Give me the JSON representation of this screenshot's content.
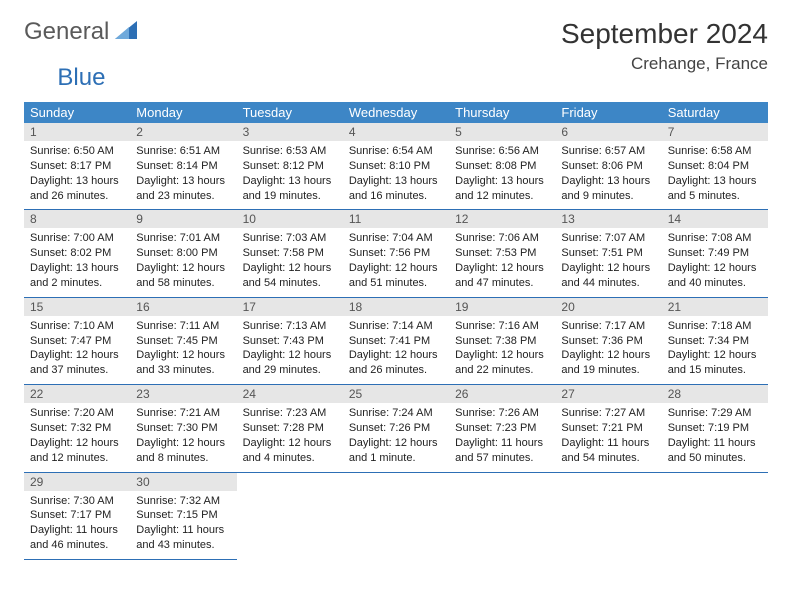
{
  "brand": {
    "part1": "General",
    "part2": "Blue"
  },
  "title": "September 2024",
  "location": "Crehange, France",
  "colors": {
    "header_bg": "#3d86c6",
    "header_text": "#ffffff",
    "daynum_bg": "#e6e6e6",
    "rule": "#2d6fb5",
    "brand_gray": "#5a5a5a",
    "brand_blue": "#2d6fb5"
  },
  "weekdays": [
    "Sunday",
    "Monday",
    "Tuesday",
    "Wednesday",
    "Thursday",
    "Friday",
    "Saturday"
  ],
  "weeks": [
    [
      {
        "n": "1",
        "sunrise": "6:50 AM",
        "sunset": "8:17 PM",
        "dh": "13",
        "dm": "26"
      },
      {
        "n": "2",
        "sunrise": "6:51 AM",
        "sunset": "8:14 PM",
        "dh": "13",
        "dm": "23"
      },
      {
        "n": "3",
        "sunrise": "6:53 AM",
        "sunset": "8:12 PM",
        "dh": "13",
        "dm": "19"
      },
      {
        "n": "4",
        "sunrise": "6:54 AM",
        "sunset": "8:10 PM",
        "dh": "13",
        "dm": "16"
      },
      {
        "n": "5",
        "sunrise": "6:56 AM",
        "sunset": "8:08 PM",
        "dh": "13",
        "dm": "12"
      },
      {
        "n": "6",
        "sunrise": "6:57 AM",
        "sunset": "8:06 PM",
        "dh": "13",
        "dm": "9"
      },
      {
        "n": "7",
        "sunrise": "6:58 AM",
        "sunset": "8:04 PM",
        "dh": "13",
        "dm": "5"
      }
    ],
    [
      {
        "n": "8",
        "sunrise": "7:00 AM",
        "sunset": "8:02 PM",
        "dh": "13",
        "dm": "2"
      },
      {
        "n": "9",
        "sunrise": "7:01 AM",
        "sunset": "8:00 PM",
        "dh": "12",
        "dm": "58"
      },
      {
        "n": "10",
        "sunrise": "7:03 AM",
        "sunset": "7:58 PM",
        "dh": "12",
        "dm": "54"
      },
      {
        "n": "11",
        "sunrise": "7:04 AM",
        "sunset": "7:56 PM",
        "dh": "12",
        "dm": "51"
      },
      {
        "n": "12",
        "sunrise": "7:06 AM",
        "sunset": "7:53 PM",
        "dh": "12",
        "dm": "47"
      },
      {
        "n": "13",
        "sunrise": "7:07 AM",
        "sunset": "7:51 PM",
        "dh": "12",
        "dm": "44"
      },
      {
        "n": "14",
        "sunrise": "7:08 AM",
        "sunset": "7:49 PM",
        "dh": "12",
        "dm": "40"
      }
    ],
    [
      {
        "n": "15",
        "sunrise": "7:10 AM",
        "sunset": "7:47 PM",
        "dh": "12",
        "dm": "37"
      },
      {
        "n": "16",
        "sunrise": "7:11 AM",
        "sunset": "7:45 PM",
        "dh": "12",
        "dm": "33"
      },
      {
        "n": "17",
        "sunrise": "7:13 AM",
        "sunset": "7:43 PM",
        "dh": "12",
        "dm": "29"
      },
      {
        "n": "18",
        "sunrise": "7:14 AM",
        "sunset": "7:41 PM",
        "dh": "12",
        "dm": "26"
      },
      {
        "n": "19",
        "sunrise": "7:16 AM",
        "sunset": "7:38 PM",
        "dh": "12",
        "dm": "22"
      },
      {
        "n": "20",
        "sunrise": "7:17 AM",
        "sunset": "7:36 PM",
        "dh": "12",
        "dm": "19"
      },
      {
        "n": "21",
        "sunrise": "7:18 AM",
        "sunset": "7:34 PM",
        "dh": "12",
        "dm": "15"
      }
    ],
    [
      {
        "n": "22",
        "sunrise": "7:20 AM",
        "sunset": "7:32 PM",
        "dh": "12",
        "dm": "12"
      },
      {
        "n": "23",
        "sunrise": "7:21 AM",
        "sunset": "7:30 PM",
        "dh": "12",
        "dm": "8"
      },
      {
        "n": "24",
        "sunrise": "7:23 AM",
        "sunset": "7:28 PM",
        "dh": "12",
        "dm": "4"
      },
      {
        "n": "25",
        "sunrise": "7:24 AM",
        "sunset": "7:26 PM",
        "dh": "12",
        "dm": "1"
      },
      {
        "n": "26",
        "sunrise": "7:26 AM",
        "sunset": "7:23 PM",
        "dh": "11",
        "dm": "57"
      },
      {
        "n": "27",
        "sunrise": "7:27 AM",
        "sunset": "7:21 PM",
        "dh": "11",
        "dm": "54"
      },
      {
        "n": "28",
        "sunrise": "7:29 AM",
        "sunset": "7:19 PM",
        "dh": "11",
        "dm": "50"
      }
    ],
    [
      {
        "n": "29",
        "sunrise": "7:30 AM",
        "sunset": "7:17 PM",
        "dh": "11",
        "dm": "46"
      },
      {
        "n": "30",
        "sunrise": "7:32 AM",
        "sunset": "7:15 PM",
        "dh": "11",
        "dm": "43"
      },
      null,
      null,
      null,
      null,
      null
    ]
  ]
}
